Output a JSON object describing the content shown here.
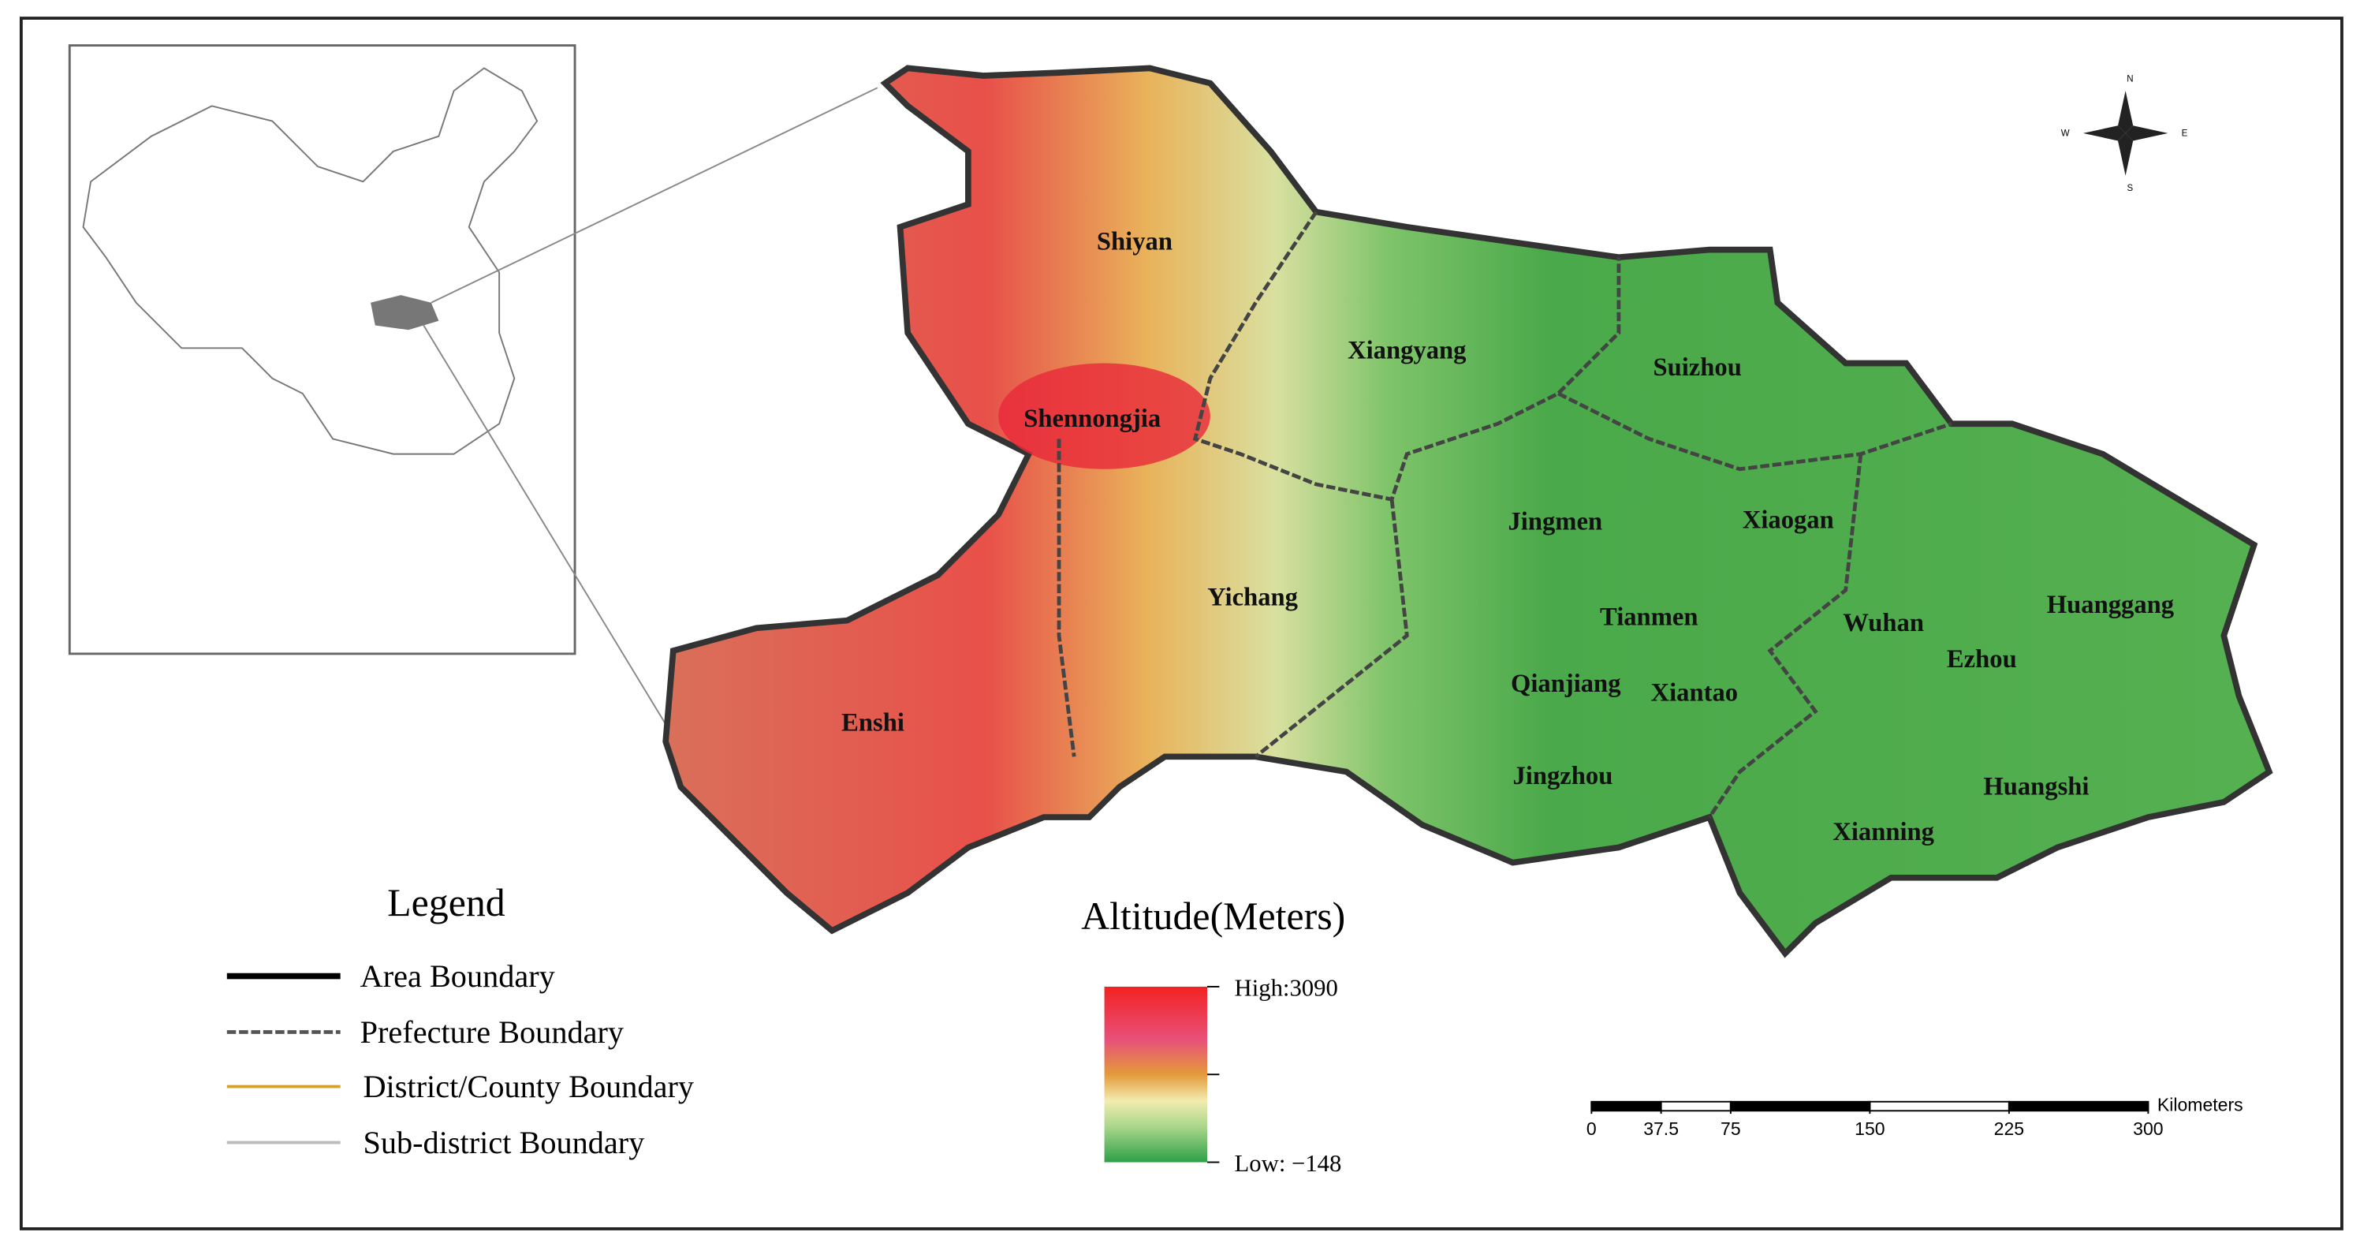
{
  "map": {
    "cities": [
      "Shiyan",
      "Xiangyang",
      "Suizhou",
      "Shennongjia",
      "Jingmen",
      "Xiaogan",
      "Yichang",
      "Tianmen",
      "Wuhan",
      "Huanggang",
      "Ezhou",
      "Qianjiang",
      "Xiantao",
      "Enshi",
      "Jingzhou",
      "Huangshi",
      "Xianning"
    ],
    "compass": [
      "N",
      "S",
      "E",
      "W"
    ],
    "legend": {
      "title": "Legend",
      "items": [
        "Area Boundary",
        "Prefecture Boundary",
        "District/County Boundary",
        "Sub-district Boundary"
      ]
    },
    "altitude": {
      "title": "Altitude(Meters)",
      "high": "High:3090",
      "low": "Low: −148"
    },
    "scale": {
      "unit": "Kilometers",
      "ticks": [
        0,
        37.5,
        75,
        150,
        225,
        300
      ]
    }
  }
}
